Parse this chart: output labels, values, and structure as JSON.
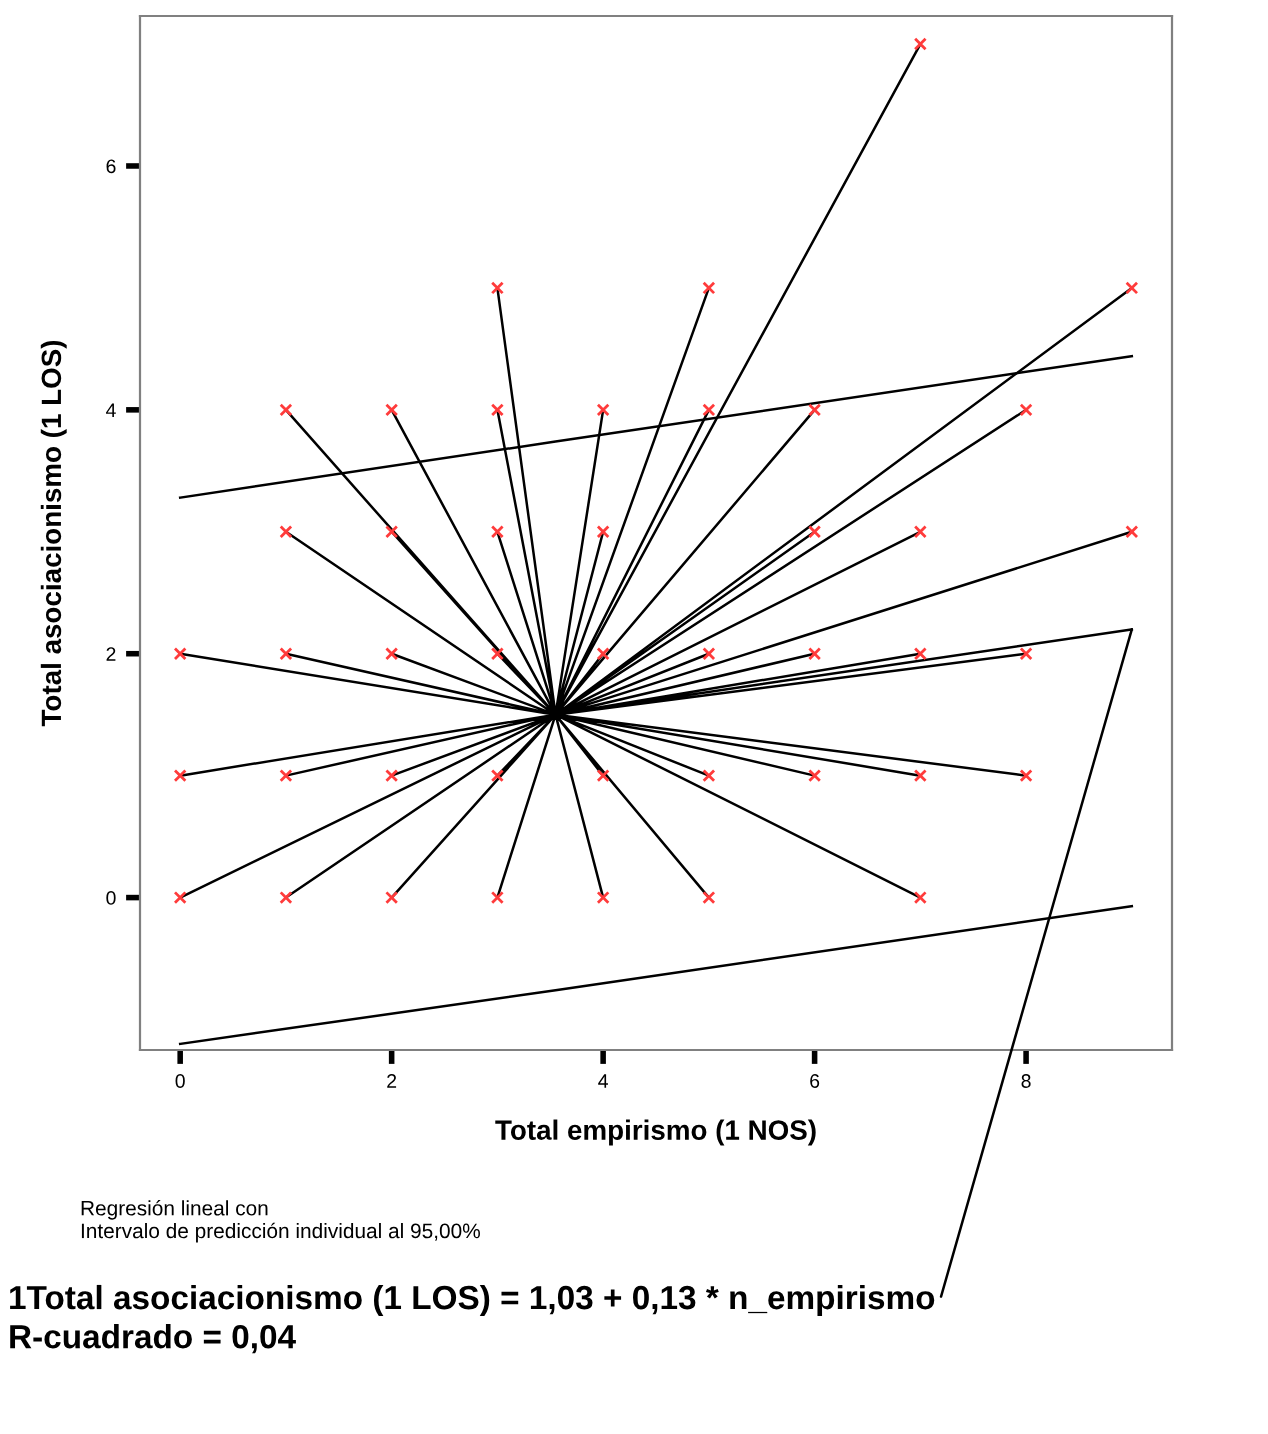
{
  "chart_data": {
    "type": "scatter",
    "xlabel": "Total empirismo (1 NOS)",
    "ylabel": "Total asociacionismo (1 LOS)",
    "xlim": [
      -0.38,
      9.38
    ],
    "ylim": [
      -1.25,
      7.23
    ],
    "xticks": [
      0,
      2,
      4,
      6,
      8
    ],
    "yticks": [
      0,
      2,
      4,
      6
    ],
    "grid": false,
    "legend": false,
    "marker": "cross",
    "series": [
      {
        "type": "line",
        "color": "#000000",
        "marker": "none",
        "x": [
          3.55,
          0,
          3.55,
          1,
          3.55,
          2,
          3.55,
          3,
          3.55,
          4,
          3.55,
          5,
          3.55,
          7,
          3.55,
          0,
          3.55,
          1,
          3.55,
          2,
          3.55,
          3,
          3.55,
          4,
          3.55,
          5,
          3.55,
          6,
          3.55,
          7,
          3.55,
          8,
          3.55,
          0,
          3.55,
          1,
          3.55,
          2,
          3.55,
          3,
          3.55,
          4,
          3.55,
          5,
          3.55,
          6,
          3.55,
          7,
          3.55,
          8,
          3.55,
          1,
          3.55,
          2,
          3.55,
          3,
          3.55,
          4,
          3.55,
          6,
          3.55,
          7,
          3.55,
          9,
          3.55,
          1,
          3.55,
          2,
          3.55,
          3,
          3.55,
          4,
          3.55,
          5,
          3.55,
          6,
          3.55,
          8,
          3.55,
          3,
          3.55,
          5,
          3.55,
          9,
          3.55,
          7,
          3.55,
          9
        ],
        "values": [
          1.5,
          0,
          1.5,
          0,
          1.5,
          0,
          1.5,
          0,
          1.5,
          0,
          1.5,
          0,
          1.5,
          0,
          1.5,
          1,
          1.5,
          1,
          1.5,
          1,
          1.5,
          1,
          1.5,
          1,
          1.5,
          1,
          1.5,
          1,
          1.5,
          1,
          1.5,
          1,
          1.5,
          2,
          1.5,
          2,
          1.5,
          2,
          1.5,
          2,
          1.5,
          2,
          1.5,
          2,
          1.5,
          2,
          1.5,
          2,
          1.5,
          2,
          1.5,
          3,
          1.5,
          3,
          1.5,
          3,
          1.5,
          3,
          1.5,
          3,
          1.5,
          3,
          1.5,
          3,
          1.5,
          4,
          1.5,
          4,
          1.5,
          4,
          1.5,
          4,
          1.5,
          4,
          1.5,
          4,
          1.5,
          4,
          1.5,
          5,
          1.5,
          5,
          1.5,
          5,
          1.5,
          7,
          1.5,
          2.2
        ]
      },
      {
        "type": "line",
        "color": "#000000",
        "marker": "none",
        "x": [
          0,
          3.55,
          9
        ],
        "values": [
          3.28,
          3.74,
          4.44
        ]
      },
      {
        "type": "line",
        "color": "#000000",
        "marker": "none",
        "x": [
          0,
          3.55,
          9
        ],
        "values": [
          -1.2,
          -0.76,
          -0.07
        ]
      },
      {
        "color": "#ff3b3b",
        "x": [
          0,
          1,
          2,
          3,
          4,
          5,
          7,
          0,
          1,
          2,
          3,
          4,
          5,
          6,
          7,
          8,
          0,
          1,
          2,
          3,
          4,
          5,
          6,
          7,
          8,
          1,
          2,
          3,
          4,
          6,
          7,
          9,
          1,
          2,
          3,
          4,
          5,
          6,
          8,
          3,
          5,
          9,
          7
        ],
        "values": [
          0,
          0,
          0,
          0,
          0,
          0,
          0,
          1,
          1,
          1,
          1,
          1,
          1,
          1,
          1,
          1,
          2,
          2,
          2,
          2,
          2,
          2,
          2,
          2,
          2,
          3,
          3,
          3,
          3,
          3,
          3,
          3,
          4,
          4,
          4,
          4,
          4,
          4,
          4,
          5,
          5,
          5,
          7
        ]
      }
    ],
    "annotations": [
      "Regresión lineal con\nIntervalo de predicción individual al 95,00%",
      {
        "text": "1Total asociacionismo (1 LOS) = 1,03 + 0,13 * n_empirismo",
        "x": 9,
        "y": 2.2
      },
      "R-cuadrado = 0,04"
    ]
  }
}
